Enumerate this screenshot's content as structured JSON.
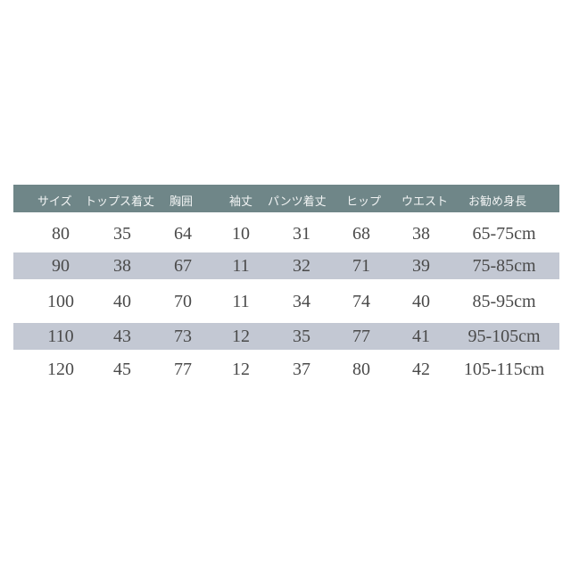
{
  "headers": [
    "サイズ",
    "トップス着丈",
    "胸囲",
    "袖丈",
    "パンツ着丈",
    "ヒップ",
    "ウエスト",
    "お勧め身長"
  ],
  "rows": [
    [
      "80",
      "35",
      "64",
      "10",
      "31",
      "68",
      "38",
      "65-75cm"
    ],
    [
      "90",
      "38",
      "67",
      "11",
      "32",
      "71",
      "39",
      "75-85cm"
    ],
    [
      "100",
      "40",
      "70",
      "11",
      "34",
      "74",
      "40",
      "85-95cm"
    ],
    [
      "110",
      "43",
      "73",
      "12",
      "35",
      "77",
      "41",
      "95-105cm"
    ],
    [
      "120",
      "45",
      "77",
      "12",
      "37",
      "80",
      "42",
      "105-115cm"
    ]
  ],
  "colors": {
    "header_bg": "#6f8688",
    "shaded_row": "#c3c8d3",
    "text": "#4a4a4a"
  }
}
